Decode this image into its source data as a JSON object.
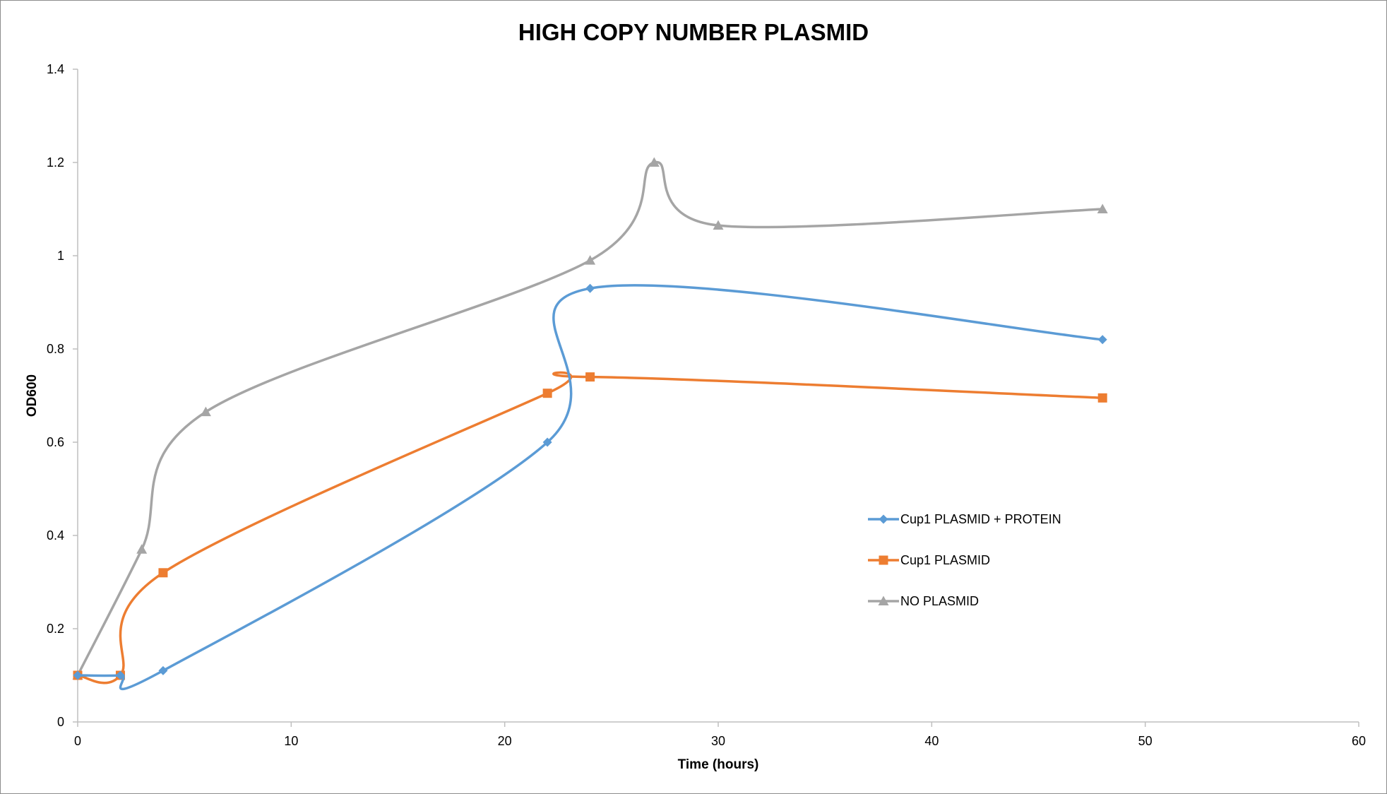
{
  "chart_data": {
    "type": "scatter",
    "title": "HIGH COPY NUMBER PLASMID",
    "xlabel": "Time (hours)",
    "ylabel": "OD600",
    "xlim": [
      0,
      60
    ],
    "ylim": [
      0,
      1.4
    ],
    "x_ticks": [
      0,
      10,
      20,
      30,
      40,
      50,
      60
    ],
    "y_ticks": [
      0,
      0.2,
      0.4,
      0.6,
      0.8,
      1,
      1.2,
      1.4
    ],
    "x_tick_labels": [
      "0",
      "10",
      "20",
      "30",
      "40",
      "50",
      "60"
    ],
    "y_tick_labels": [
      "0",
      "0.2",
      "0.4",
      "0.6",
      "0.8",
      "1",
      "1.2",
      "1.4"
    ],
    "grid": false,
    "smoothed_lines": true,
    "legend_position": "right",
    "series": [
      {
        "name": "Cup1 PLASMID + PROTEIN",
        "color": "#5b9bd5",
        "marker": "diamond",
        "x": [
          0,
          2,
          4,
          22,
          24,
          48
        ],
        "y": [
          0.1,
          0.1,
          0.11,
          0.6,
          0.93,
          0.82
        ]
      },
      {
        "name": "Cup1 PLASMID",
        "color": "#ed7d31",
        "marker": "square",
        "x": [
          0,
          2,
          4,
          22,
          24,
          48
        ],
        "y": [
          0.1,
          0.1,
          0.32,
          0.705,
          0.74,
          0.695
        ]
      },
      {
        "name": "NO PLASMID",
        "color": "#a5a5a5",
        "marker": "triangle",
        "x": [
          0,
          3,
          6,
          24,
          27,
          30,
          48
        ],
        "y": [
          0.1,
          0.37,
          0.665,
          0.99,
          1.2,
          1.065,
          1.1
        ]
      }
    ]
  }
}
